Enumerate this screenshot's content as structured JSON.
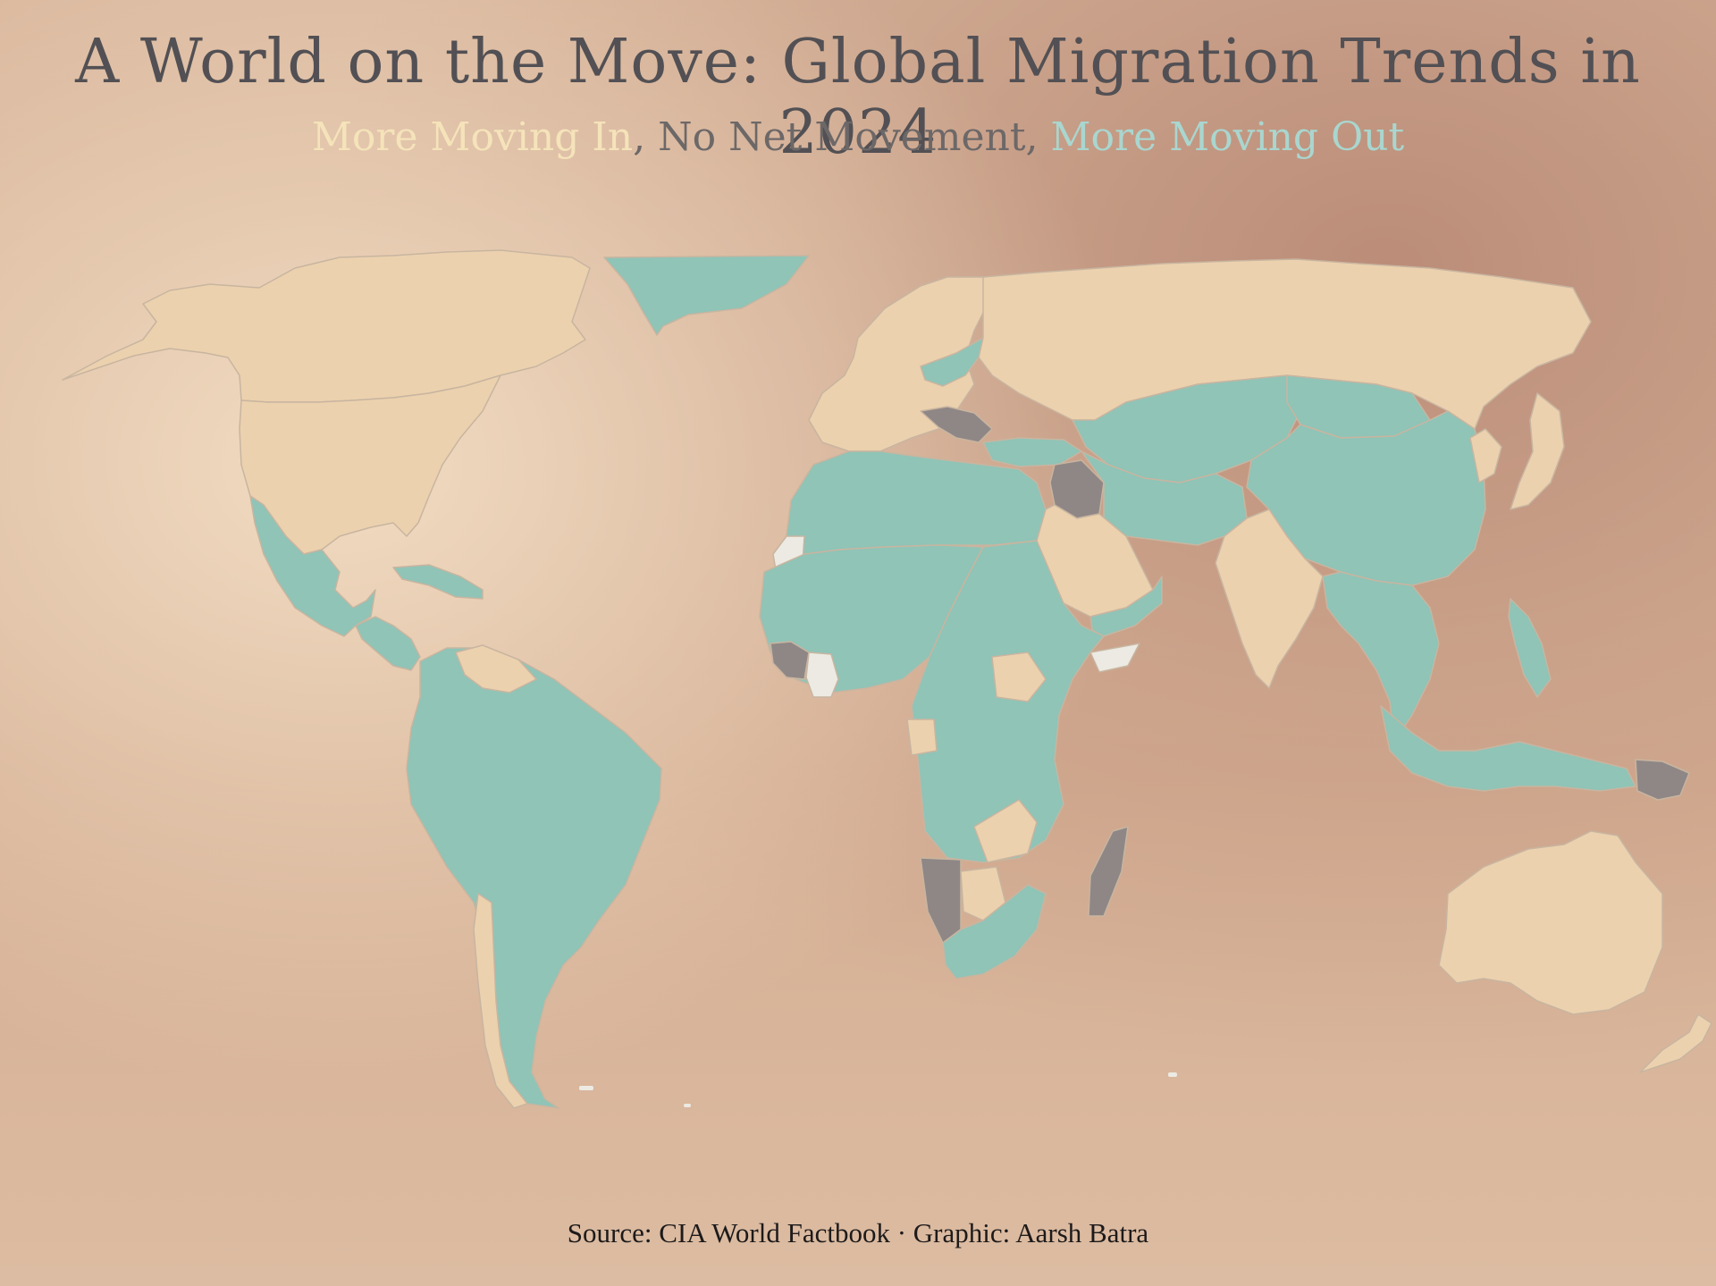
{
  "title": "A World on the Move: Global Migration Trends in 2024",
  "subtitle": {
    "in": "More Moving In",
    "sep1": ", ",
    "none": "No Net Movement",
    "sep2": ", ",
    "out": "More Moving Out"
  },
  "source": "Source: CIA World Factbook · Graphic: Aarsh Batra",
  "colors": {
    "moving_in": "#ecd1ae",
    "no_net": "#8f8786",
    "moving_out": "#8fc4b7",
    "no_data": "#eceae3",
    "border": "#c8b5a0"
  },
  "legend": [
    {
      "category": "moving_in",
      "label": "More Moving In"
    },
    {
      "category": "no_net",
      "label": "No Net Movement"
    },
    {
      "category": "moving_out",
      "label": "More Moving Out"
    }
  ],
  "regions": [
    {
      "name": "Canada",
      "category": "moving_in"
    },
    {
      "name": "United States",
      "category": "moving_in"
    },
    {
      "name": "Greenland",
      "category": "moving_out"
    },
    {
      "name": "Mexico",
      "category": "moving_out"
    },
    {
      "name": "Central America",
      "category": "moving_out"
    },
    {
      "name": "Caribbean",
      "category": "moving_out"
    },
    {
      "name": "Guyana / Suriname",
      "category": "moving_in"
    },
    {
      "name": "South America",
      "category": "moving_out"
    },
    {
      "name": "Chile",
      "category": "moving_in"
    },
    {
      "name": "Western Europe",
      "category": "moving_in"
    },
    {
      "name": "Poland / Belarus",
      "category": "moving_out"
    },
    {
      "name": "Balkans",
      "category": "no_net"
    },
    {
      "name": "Turkey",
      "category": "moving_out"
    },
    {
      "name": "Russia",
      "category": "moving_in"
    },
    {
      "name": "Kazakhstan / Central Asia",
      "category": "moving_out"
    },
    {
      "name": "China",
      "category": "moving_out"
    },
    {
      "name": "Mongolia",
      "category": "moving_out"
    },
    {
      "name": "Japan",
      "category": "moving_in"
    },
    {
      "name": "Korea",
      "category": "moving_in"
    },
    {
      "name": "Iraq",
      "category": "no_net"
    },
    {
      "name": "Saudi Arabia",
      "category": "moving_in"
    },
    {
      "name": "Yemen",
      "category": "moving_out"
    },
    {
      "name": "Iran / Afghanistan",
      "category": "moving_out"
    },
    {
      "name": "India",
      "category": "moving_in"
    },
    {
      "name": "Southeast Asia",
      "category": "moving_out"
    },
    {
      "name": "Philippines",
      "category": "moving_out"
    },
    {
      "name": "Indonesia",
      "category": "moving_out"
    },
    {
      "name": "Papua New Guinea",
      "category": "no_net"
    },
    {
      "name": "Australia",
      "category": "moving_in"
    },
    {
      "name": "New Zealand",
      "category": "moving_in"
    },
    {
      "name": "North Africa",
      "category": "moving_out"
    },
    {
      "name": "Western Sahara",
      "category": "no_data"
    },
    {
      "name": "West Africa",
      "category": "moving_out"
    },
    {
      "name": "Ivory Coast",
      "category": "no_data"
    },
    {
      "name": "Liberia",
      "category": "no_net"
    },
    {
      "name": "South Sudan",
      "category": "moving_in"
    },
    {
      "name": "Somalia",
      "category": "no_data"
    },
    {
      "name": "Central Africa",
      "category": "moving_out"
    },
    {
      "name": "Gabon",
      "category": "moving_in"
    },
    {
      "name": "Zambia",
      "category": "moving_in"
    },
    {
      "name": "Namibia",
      "category": "no_net"
    },
    {
      "name": "Botswana",
      "category": "moving_in"
    },
    {
      "name": "South Africa",
      "category": "moving_out"
    },
    {
      "name": "Madagascar",
      "category": "no_net"
    }
  ]
}
